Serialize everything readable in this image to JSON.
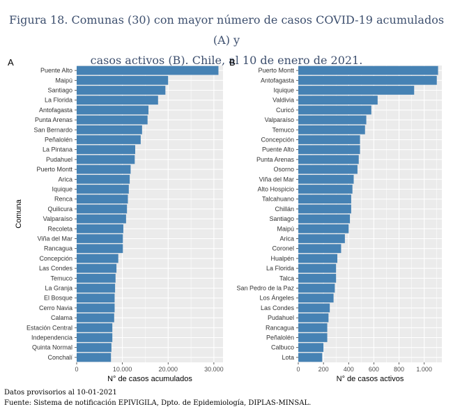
{
  "title_line1": "Figura 18. Comunas (30) con mayor número de casos COVID-19 acumulados (A) y",
  "title_line2": "casos activos (B). Chile, al 10 de enero de 2021.",
  "footnote1": "Datos provisorios al 10-01-2021",
  "footnote2": "Fuente: Sistema de notificación EPIVIGILA, Dpto. de Epidemiología, DIPLAS-MINSAL.",
  "colors": {
    "bar": "#4682b4",
    "panel_bg": "#ebebeb",
    "grid": "#ffffff"
  },
  "chart_data": [
    {
      "type": "bar",
      "orientation": "horizontal",
      "panel_label": "A",
      "ylabel": "Comuna",
      "xlabel": "N° de casos acumulados",
      "xlim": [
        0,
        32000
      ],
      "xticks": [
        0,
        10000,
        20000,
        30000
      ],
      "xtick_labels": [
        "0",
        "10.000",
        "20.000",
        "30.000"
      ],
      "grid": true,
      "categories": [
        "Puente Alto",
        "Maipú",
        "Santiago",
        "La Florida",
        "Antofagasta",
        "Punta Arenas",
        "San Bernardo",
        "Peñalolén",
        "La Pintana",
        "Pudahuel",
        "Puerto Montt",
        "Arica",
        "Iquique",
        "Renca",
        "Quilicura",
        "Valparaíso",
        "Recoleta",
        "Viña del Mar",
        "Rancagua",
        "Concepción",
        "Las Condes",
        "Temuco",
        "La Granja",
        "El Bosque",
        "Cerro Navia",
        "Calama",
        "Estación Central",
        "Independencia",
        "Quinta Normal",
        "Conchalí"
      ],
      "values": [
        31000,
        20000,
        19400,
        17800,
        15700,
        15500,
        14300,
        14000,
        12800,
        12700,
        11800,
        11600,
        11400,
        11200,
        11000,
        10800,
        10200,
        10100,
        10100,
        9100,
        8700,
        8500,
        8400,
        8300,
        8300,
        8200,
        7800,
        7800,
        7600,
        7500
      ]
    },
    {
      "type": "bar",
      "orientation": "horizontal",
      "panel_label": "B",
      "xlabel": "N° de casos activos",
      "xlim": [
        0,
        1140
      ],
      "xticks": [
        0,
        200,
        400,
        600,
        800,
        1000
      ],
      "xtick_labels": [
        "0",
        "200",
        "400",
        "600",
        "800",
        "1.000"
      ],
      "grid": true,
      "categories": [
        "Puerto Montt",
        "Antofagasta",
        "Iquique",
        "Valdivia",
        "Curicó",
        "Valparaíso",
        "Temuco",
        "Concepción",
        "Puente Alto",
        "Punta Arenas",
        "Osorno",
        "Viña del Mar",
        "Alto Hospicio",
        "Talcahuano",
        "Chillán",
        "Santiago",
        "Maipú",
        "Arica",
        "Coronel",
        "Hualpén",
        "La Florida",
        "Talca",
        "San Pedro de la Paz",
        "Los Ángeles",
        "Las Condes",
        "Pudahuel",
        "Rancagua",
        "Peñalolén",
        "Calbuco",
        "Lota"
      ],
      "values": [
        1110,
        1100,
        920,
        630,
        580,
        540,
        530,
        490,
        490,
        480,
        470,
        440,
        430,
        420,
        420,
        410,
        400,
        370,
        340,
        310,
        300,
        300,
        290,
        280,
        250,
        240,
        230,
        230,
        200,
        190
      ]
    }
  ]
}
